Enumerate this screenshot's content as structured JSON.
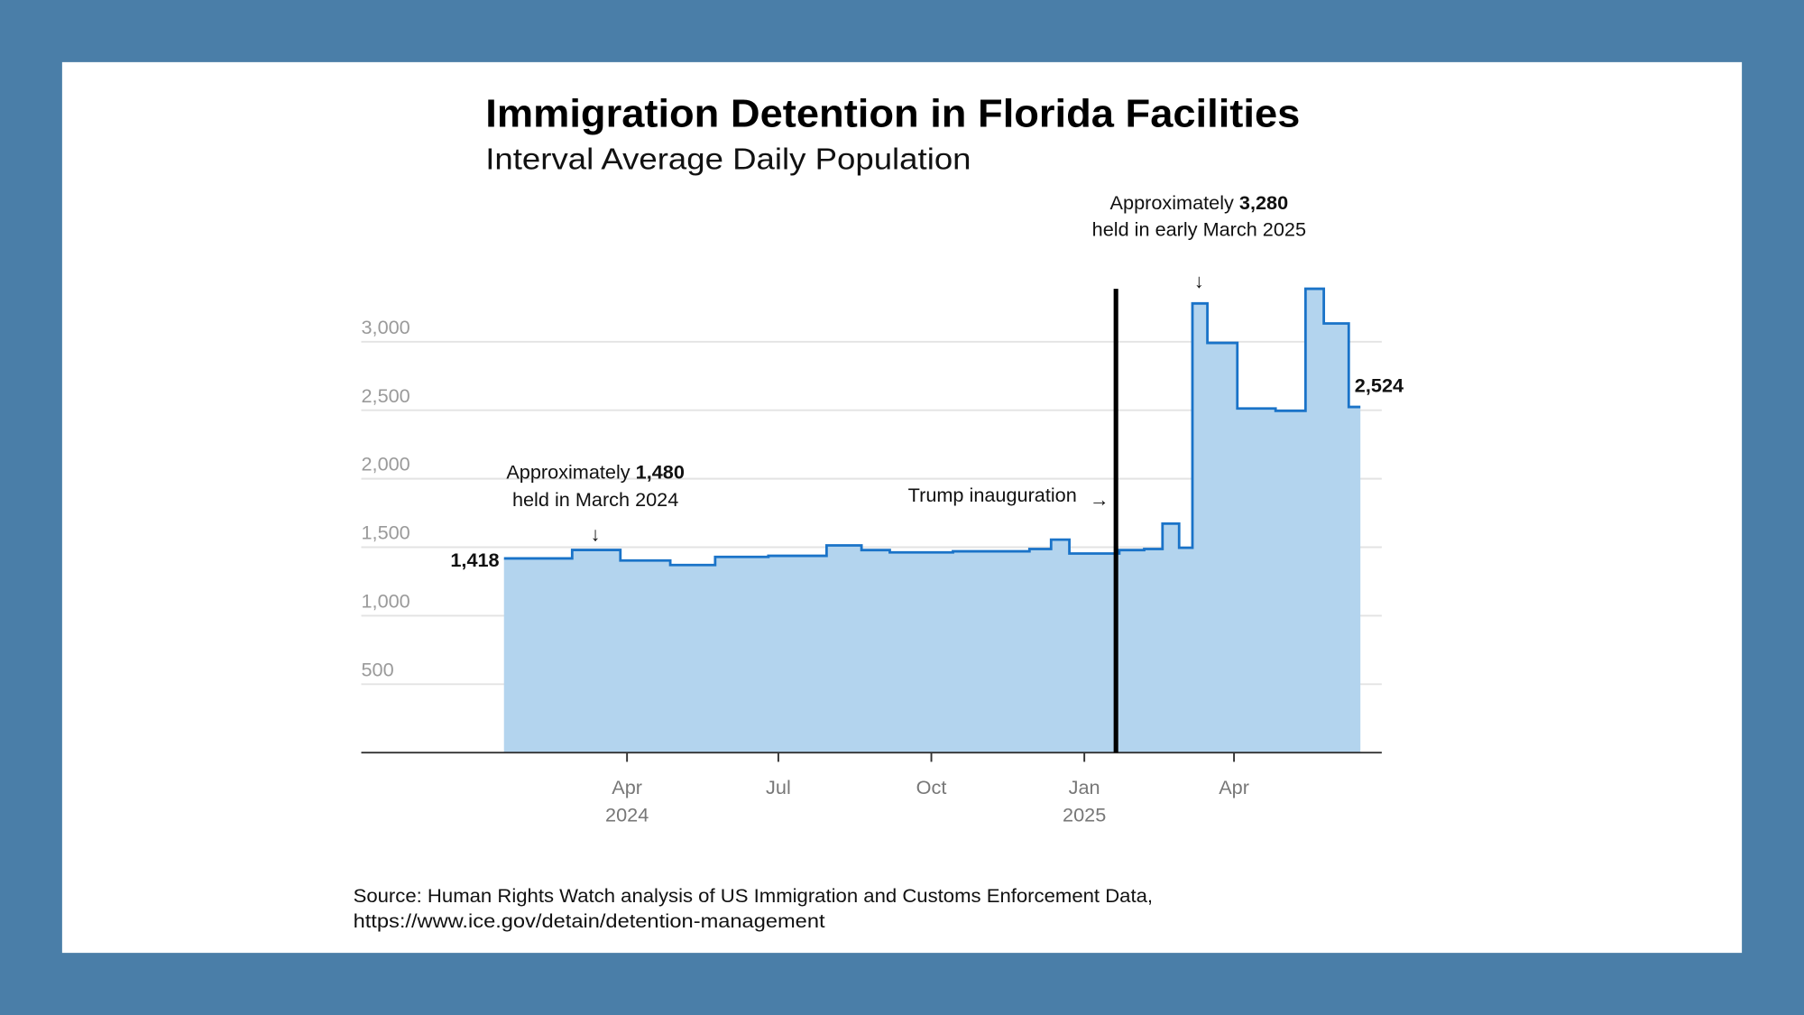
{
  "colors": {
    "background": "#4a7ea8",
    "card": "#ffffff",
    "line": "#1a73c8",
    "fill": "#b3d4ee",
    "grid": "#e3e3e3",
    "event_line": "#000000"
  },
  "chart_data": {
    "type": "area",
    "step": true,
    "title": "Immigration Detention in Florida Facilities",
    "subtitle": "Interval Average Daily Population",
    "xlabel": "",
    "ylabel": "",
    "ylim": [
      0,
      3400
    ],
    "xlim": [
      "2024-01-18",
      "2025-06-16"
    ],
    "grid": true,
    "yticks": [
      {
        "value": 500,
        "label": "500"
      },
      {
        "value": 1000,
        "label": "1,000"
      },
      {
        "value": 1500,
        "label": "1,500"
      },
      {
        "value": 2000,
        "label": "2,000"
      },
      {
        "value": 2500,
        "label": "2,500"
      },
      {
        "value": 3000,
        "label": "3,000"
      }
    ],
    "xticks": [
      {
        "date": "2024-04-01",
        "label": "Apr",
        "year": "2024"
      },
      {
        "date": "2024-07-01",
        "label": "Jul",
        "year": ""
      },
      {
        "date": "2024-10-01",
        "label": "Oct",
        "year": ""
      },
      {
        "date": "2025-01-01",
        "label": "Jan",
        "year": "2025"
      },
      {
        "date": "2025-04-01",
        "label": "Apr",
        "year": ""
      }
    ],
    "series": [
      {
        "name": "Interval Average Daily Population",
        "steps": [
          {
            "start": "2024-01-18",
            "value": 1418
          },
          {
            "start": "2024-02-28",
            "value": 1480
          },
          {
            "start": "2024-03-28",
            "value": 1403
          },
          {
            "start": "2024-04-27",
            "value": 1370
          },
          {
            "start": "2024-05-24",
            "value": 1429
          },
          {
            "start": "2024-06-25",
            "value": 1437
          },
          {
            "start": "2024-07-30",
            "value": 1513
          },
          {
            "start": "2024-08-20",
            "value": 1479
          },
          {
            "start": "2024-09-06",
            "value": 1462
          },
          {
            "start": "2024-10-14",
            "value": 1470
          },
          {
            "start": "2024-11-29",
            "value": 1487
          },
          {
            "start": "2024-12-12",
            "value": 1555
          },
          {
            "start": "2024-12-23",
            "value": 1454
          },
          {
            "start": "2025-01-22",
            "value": 1479
          },
          {
            "start": "2025-02-06",
            "value": 1487
          },
          {
            "start": "2025-02-17",
            "value": 1672
          },
          {
            "start": "2025-02-27",
            "value": 1496
          },
          {
            "start": "2025-03-07",
            "value": 3280
          },
          {
            "start": "2025-03-16",
            "value": 2992
          },
          {
            "start": "2025-04-03",
            "value": 2513
          },
          {
            "start": "2025-04-26",
            "value": 2496
          },
          {
            "start": "2025-05-14",
            "value": 3387
          },
          {
            "start": "2025-05-25",
            "value": 3134
          },
          {
            "start": "2025-06-09",
            "value": 2524
          }
        ],
        "end": "2025-06-16"
      }
    ],
    "start_label": "1,418",
    "end_label": "2,524",
    "event": {
      "date": "2025-01-20",
      "label": "Trump inauguration",
      "arrow": "→"
    },
    "annotations": [
      {
        "date": "2024-03-13",
        "prefix": "Approximately ",
        "value": "1,480",
        "line2": "held in March 2024",
        "arrow": "↓"
      },
      {
        "date": "2025-03-11",
        "prefix": "Approximately ",
        "value": "3,280",
        "line2": "held in early March 2025",
        "arrow": "↓"
      }
    ]
  },
  "source": {
    "line1": "Source: Human Rights Watch analysis of US Immigration and Customs Enforcement Data,",
    "line2": "https://www.ice.gov/detain/detention-management"
  }
}
